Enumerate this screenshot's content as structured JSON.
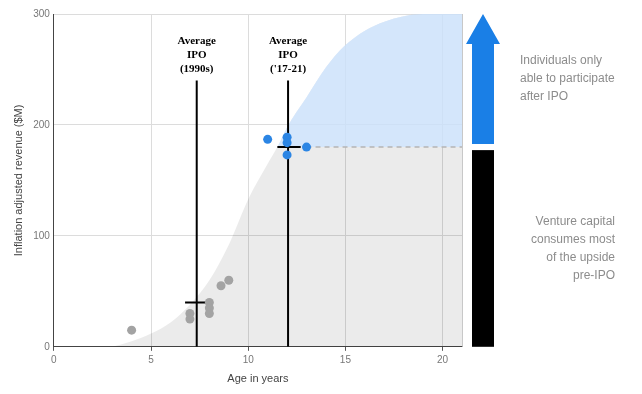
{
  "chart_data": {
    "type": "scatter",
    "x_label": "Age in years",
    "y_label": "Inflation adjusted revenue ($M)",
    "xlim": [
      0,
      21
    ],
    "xticks": [
      0,
      5,
      10,
      15,
      20
    ],
    "ylim": [
      0,
      300
    ],
    "yticks": [
      0,
      100,
      200,
      300
    ],
    "grid": true,
    "series": [
      {
        "type": "area",
        "colors": [
          "rgba(0,0,0,0.08)",
          "rgba(206,229,255,0.8)"
        ],
        "x": [
          3,
          4,
          5,
          6,
          7,
          8,
          9,
          10,
          11,
          11.5,
          12,
          13,
          14,
          15,
          16,
          17,
          18,
          19,
          20,
          21
        ],
        "values": [
          0,
          5,
          12,
          22,
          38,
          60,
          92,
          133,
          165,
          180,
          198,
          225,
          252,
          272,
          285,
          293,
          298,
          300,
          300,
          300
        ]
      },
      {
        "type": "scatter",
        "marker": "circle",
        "color": "#a3a3a3",
        "x": [
          4,
          7,
          7,
          8,
          8,
          8,
          8.6,
          9
        ],
        "values": [
          15,
          30,
          25,
          40,
          35,
          30,
          55,
          60
        ]
      },
      {
        "type": "scatter",
        "marker": "circle",
        "color": "#2b85e4",
        "x": [
          11,
          12,
          12,
          12,
          13
        ],
        "values": [
          187,
          189,
          184,
          173,
          180
        ]
      }
    ],
    "ipo_level": {
      "value": 180,
      "x_start": 13,
      "color": "#b5b5b5",
      "line_style": "dashed"
    },
    "ipo_markers": [
      {
        "label_lines": [
          "Average",
          "IPO",
          "(1990s)"
        ],
        "x": 7.35,
        "y": 40,
        "x_range": [
          6.75,
          8
        ],
        "line_top": 240,
        "color": "#000000"
      },
      {
        "label_lines": [
          "Average",
          "IPO",
          "('17-21)"
        ],
        "x": 12.05,
        "y": 180,
        "x_range": [
          11.5,
          12.7
        ],
        "line_top": 240,
        "color": "#000000"
      }
    ],
    "side_notes": [
      {
        "marker": "arrow",
        "color": "#1a7fe6",
        "lines": [
          "Individuals only",
          "able to participate",
          "after IPO"
        ]
      },
      {
        "marker": "bar",
        "color": "#000000",
        "lines": [
          "Venture capital",
          "consumes most",
          "of the upside",
          "pre-IPO"
        ]
      }
    ]
  }
}
